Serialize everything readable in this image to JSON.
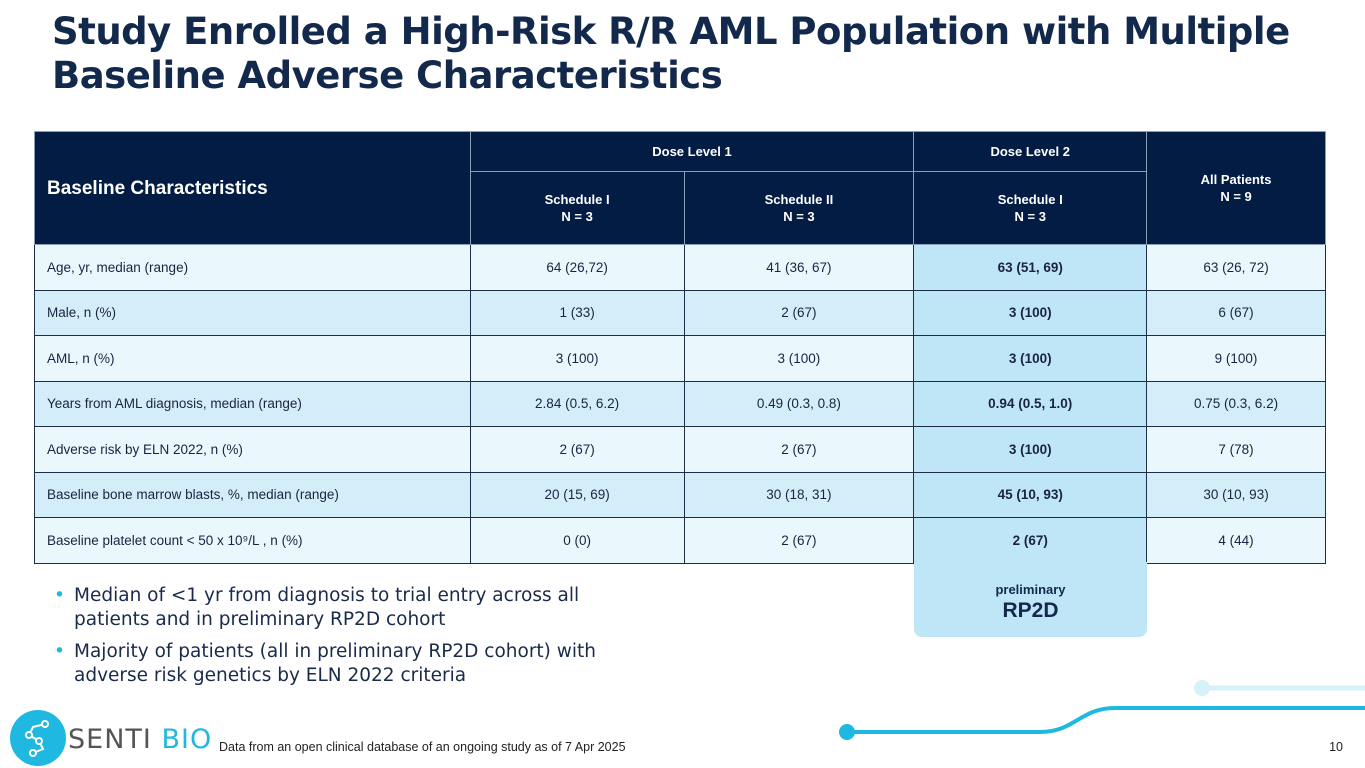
{
  "title": "Study Enrolled a High-Risk R/R AML Population with Multiple Baseline Adverse Characteristics",
  "table": {
    "header_main": "Baseline Characteristics",
    "dose1": "Dose Level 1",
    "dose2": "Dose Level 2",
    "all_patients": "All Patients",
    "all_n": "N = 9",
    "sub": [
      {
        "s": "Schedule I",
        "n": "N = 3"
      },
      {
        "s": "Schedule II",
        "n": "N = 3"
      },
      {
        "s": "Schedule I",
        "n": "N = 3"
      }
    ],
    "rows": [
      [
        "Age, yr, median (range)",
        "64 (26,72)",
        "41 (36, 67)",
        "63 (51, 69)",
        "63 (26, 72)"
      ],
      [
        "Male, n (%)",
        "1 (33)",
        "2 (67)",
        "3 (100)",
        "6 (67)"
      ],
      [
        "AML, n (%)",
        "3 (100)",
        "3 (100)",
        "3 (100)",
        "9 (100)"
      ],
      [
        "Years from AML diagnosis, median (range)",
        "2.84 (0.5, 6.2)",
        "0.49 (0.3, 0.8)",
        "0.94 (0.5, 1.0)",
        "0.75 (0.3, 6.2)"
      ],
      [
        "Adverse risk by ELN 2022, n (%)",
        "2 (67)",
        "2 (67)",
        "3 (100)",
        "7 (78)"
      ],
      [
        "Baseline bone marrow blasts, %, median (range)",
        "20 (15, 69)",
        "30 (18, 31)",
        "45 (10, 93)",
        "30 (10, 93)"
      ],
      [
        "Baseline platelet count < 50 x 10⁹/L , n (%)",
        "0 (0)",
        "2 (67)",
        "2 (67)",
        "4 (44)"
      ]
    ]
  },
  "rp2d": {
    "top": "preliminary",
    "main": "RP2D"
  },
  "bullets": [
    "Median of <1 yr from diagnosis to trial entry across all patients and in preliminary RP2D cohort",
    "Majority of patients (all in preliminary RP2D cohort) with adverse risk genetics by ELN 2022 criteria"
  ],
  "brand": {
    "a": "SENTI",
    "b": "BIO"
  },
  "footnote": "Data from an open clinical database of an ongoing study as of 7 Apr 2025",
  "page": "10"
}
